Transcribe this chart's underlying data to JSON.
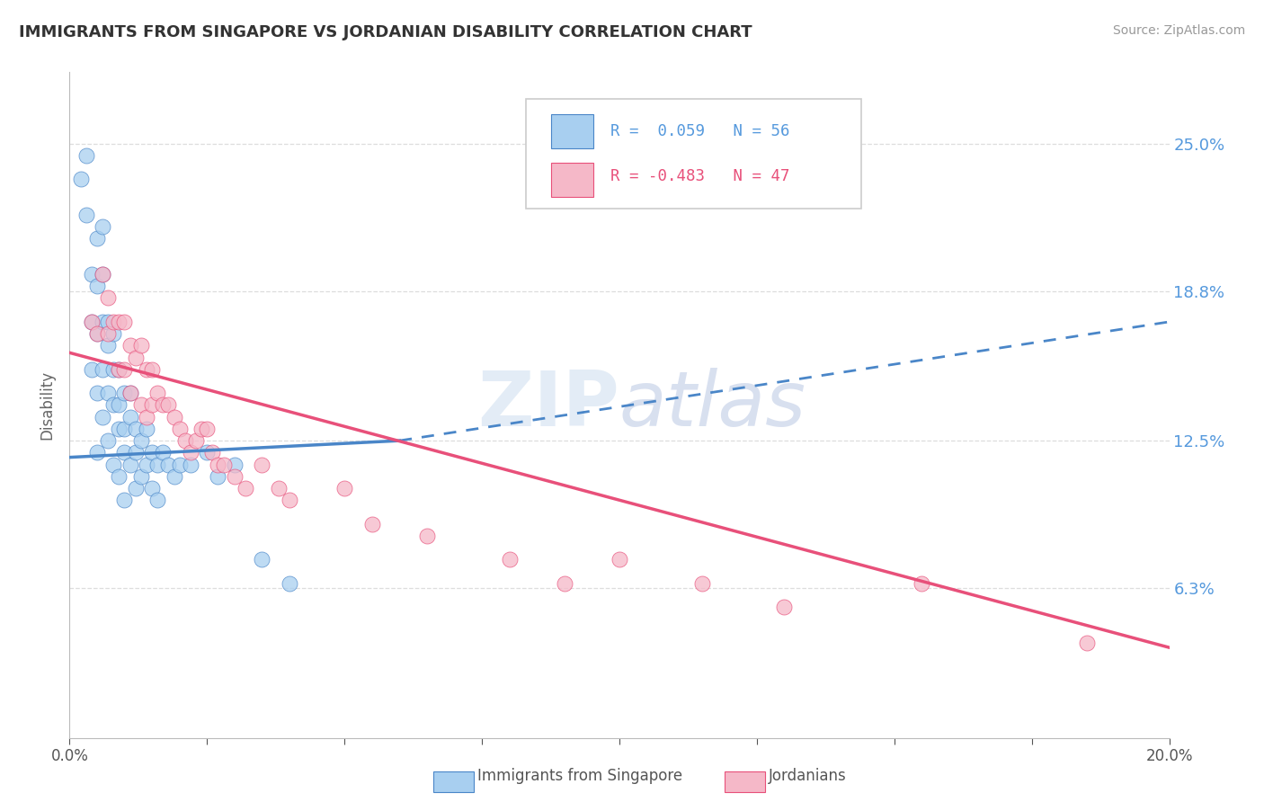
{
  "title": "IMMIGRANTS FROM SINGAPORE VS JORDANIAN DISABILITY CORRELATION CHART",
  "source": "Source: ZipAtlas.com",
  "ylabel": "Disability",
  "watermark": "ZIPatlas",
  "xlim": [
    0.0,
    0.2
  ],
  "ylim": [
    0.0,
    0.28
  ],
  "yticks": [
    0.063,
    0.125,
    0.188,
    0.25
  ],
  "ytick_labels": [
    "6.3%",
    "12.5%",
    "18.8%",
    "25.0%"
  ],
  "xticks": [
    0.0,
    0.025,
    0.05,
    0.075,
    0.1,
    0.125,
    0.15,
    0.175,
    0.2
  ],
  "xtick_labels": [
    "0.0%",
    "",
    "",
    "",
    "",
    "",
    "",
    "",
    "20.0%"
  ],
  "blue_color": "#a8cff0",
  "pink_color": "#f5b8c8",
  "blue_line_color": "#4a86c8",
  "pink_line_color": "#e8507a",
  "legend_blue_r": "R =  0.059",
  "legend_blue_n": "N = 56",
  "legend_pink_r": "R = -0.483",
  "legend_pink_n": "N = 47",
  "legend_label_blue": "Immigrants from Singapore",
  "legend_label_pink": "Jordanians",
  "title_color": "#333333",
  "axis_color": "#bbbbbb",
  "grid_color": "#dddddd",
  "right_label_color": "#5599dd",
  "blue_scatter_x": [
    0.002,
    0.003,
    0.003,
    0.004,
    0.004,
    0.004,
    0.005,
    0.005,
    0.005,
    0.005,
    0.005,
    0.006,
    0.006,
    0.006,
    0.006,
    0.006,
    0.007,
    0.007,
    0.007,
    0.007,
    0.008,
    0.008,
    0.008,
    0.008,
    0.009,
    0.009,
    0.009,
    0.009,
    0.01,
    0.01,
    0.01,
    0.01,
    0.011,
    0.011,
    0.011,
    0.012,
    0.012,
    0.012,
    0.013,
    0.013,
    0.014,
    0.014,
    0.015,
    0.015,
    0.016,
    0.016,
    0.017,
    0.018,
    0.019,
    0.02,
    0.022,
    0.025,
    0.027,
    0.03,
    0.035,
    0.04
  ],
  "blue_scatter_y": [
    0.235,
    0.245,
    0.22,
    0.195,
    0.175,
    0.155,
    0.21,
    0.19,
    0.17,
    0.145,
    0.12,
    0.215,
    0.195,
    0.175,
    0.155,
    0.135,
    0.175,
    0.165,
    0.145,
    0.125,
    0.17,
    0.155,
    0.14,
    0.115,
    0.155,
    0.14,
    0.13,
    0.11,
    0.145,
    0.13,
    0.12,
    0.1,
    0.145,
    0.135,
    0.115,
    0.13,
    0.12,
    0.105,
    0.125,
    0.11,
    0.13,
    0.115,
    0.12,
    0.105,
    0.115,
    0.1,
    0.12,
    0.115,
    0.11,
    0.115,
    0.115,
    0.12,
    0.11,
    0.115,
    0.075,
    0.065
  ],
  "pink_scatter_x": [
    0.004,
    0.005,
    0.006,
    0.007,
    0.007,
    0.008,
    0.009,
    0.009,
    0.01,
    0.01,
    0.011,
    0.011,
    0.012,
    0.013,
    0.013,
    0.014,
    0.014,
    0.015,
    0.015,
    0.016,
    0.017,
    0.018,
    0.019,
    0.02,
    0.021,
    0.022,
    0.023,
    0.024,
    0.025,
    0.026,
    0.027,
    0.028,
    0.03,
    0.032,
    0.035,
    0.038,
    0.04,
    0.05,
    0.055,
    0.065,
    0.08,
    0.09,
    0.1,
    0.115,
    0.13,
    0.155,
    0.185
  ],
  "pink_scatter_y": [
    0.175,
    0.17,
    0.195,
    0.185,
    0.17,
    0.175,
    0.175,
    0.155,
    0.175,
    0.155,
    0.165,
    0.145,
    0.16,
    0.165,
    0.14,
    0.155,
    0.135,
    0.155,
    0.14,
    0.145,
    0.14,
    0.14,
    0.135,
    0.13,
    0.125,
    0.12,
    0.125,
    0.13,
    0.13,
    0.12,
    0.115,
    0.115,
    0.11,
    0.105,
    0.115,
    0.105,
    0.1,
    0.105,
    0.09,
    0.085,
    0.075,
    0.065,
    0.075,
    0.065,
    0.055,
    0.065,
    0.04
  ],
  "blue_line_x0": 0.0,
  "blue_line_x_solid_end": 0.06,
  "blue_line_x1": 0.2,
  "blue_line_y0": 0.118,
  "blue_line_y_solid_end": 0.125,
  "blue_line_y1": 0.175,
  "pink_line_x0": 0.0,
  "pink_line_x1": 0.2,
  "pink_line_y0": 0.162,
  "pink_line_y1": 0.038
}
